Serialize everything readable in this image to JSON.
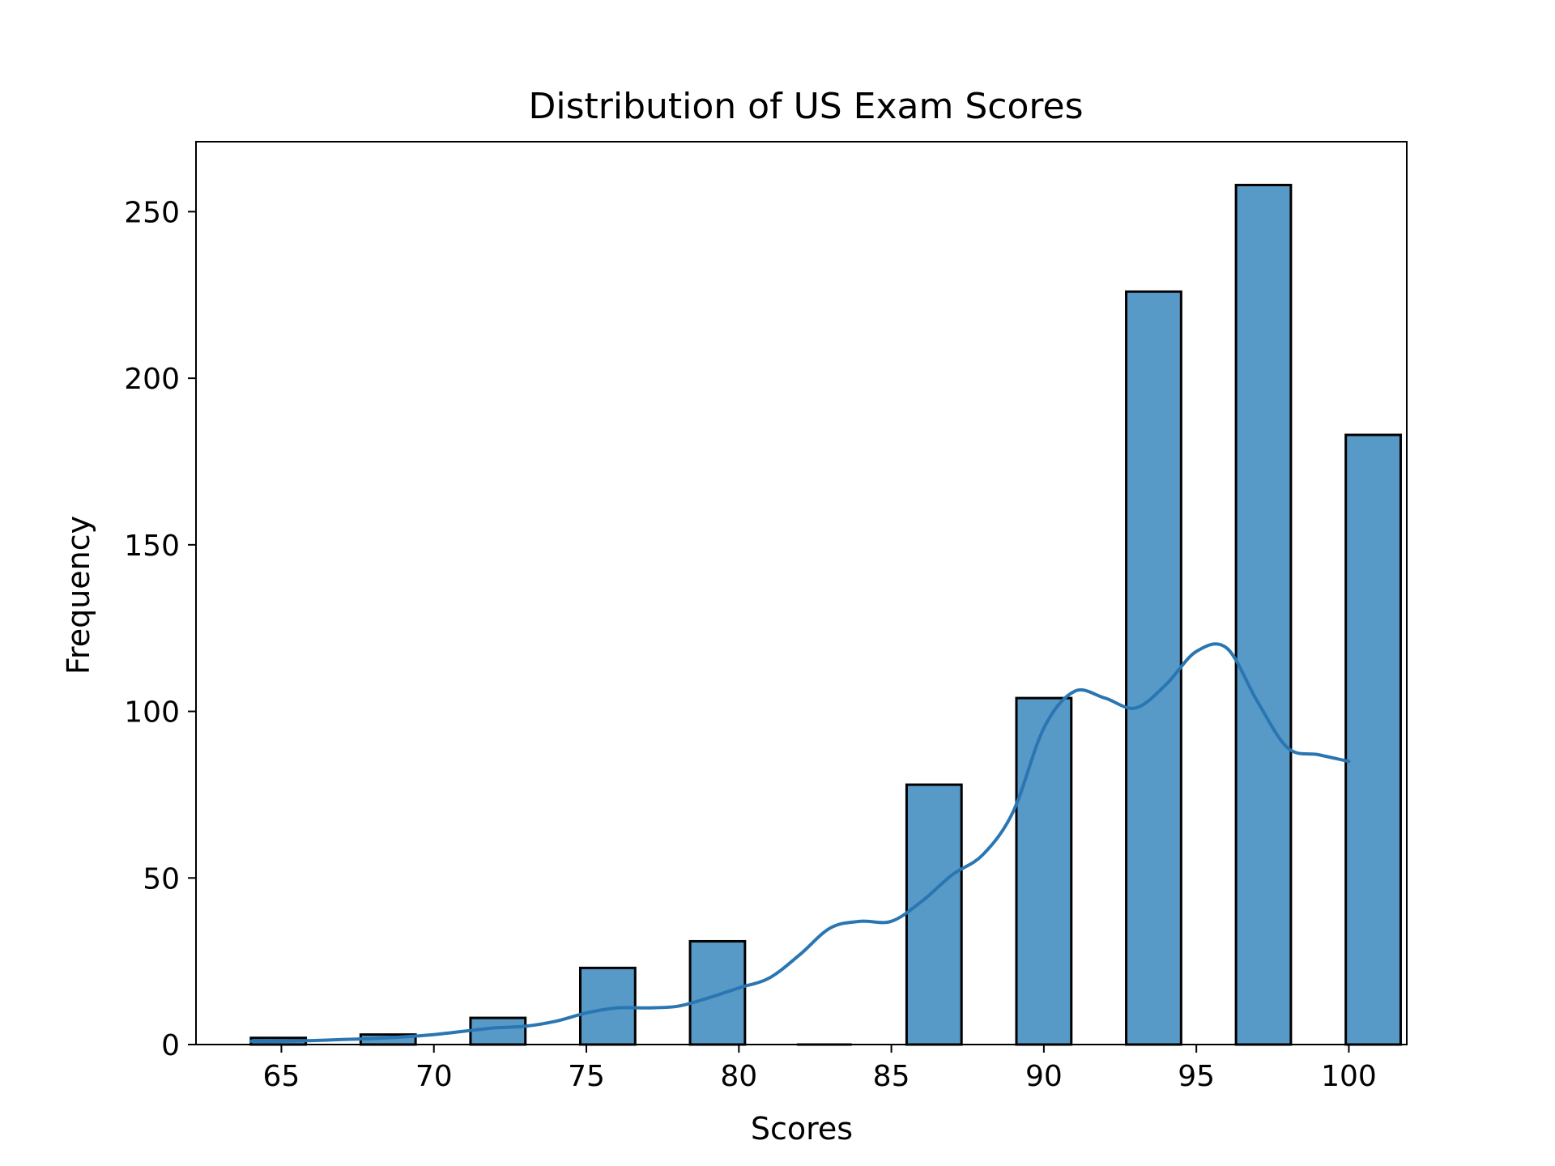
{
  "chart_data": {
    "type": "bar",
    "title": "Distribution of US Exam Scores",
    "xlabel": "Scores",
    "ylabel": "Frequency",
    "xlim": [
      62.2,
      101.9
    ],
    "ylim": [
      0,
      271
    ],
    "xticks": [
      65,
      70,
      75,
      80,
      85,
      90,
      95,
      100
    ],
    "yticks": [
      0,
      50,
      100,
      150,
      200,
      250
    ],
    "bins": [
      {
        "x0": 64.0,
        "x1": 65.8,
        "count": 2
      },
      {
        "x0": 67.6,
        "x1": 69.4,
        "count": 3
      },
      {
        "x0": 71.2,
        "x1": 73.0,
        "count": 8
      },
      {
        "x0": 74.8,
        "x1": 76.6,
        "count": 23
      },
      {
        "x0": 78.4,
        "x1": 80.2,
        "count": 31
      },
      {
        "x0": 81.9,
        "x1": 83.7,
        "count": 0
      },
      {
        "x0": 85.5,
        "x1": 87.3,
        "count": 78
      },
      {
        "x0": 89.1,
        "x1": 90.9,
        "count": 104
      },
      {
        "x0": 92.7,
        "x1": 94.5,
        "count": 226
      },
      {
        "x0": 96.3,
        "x1": 98.1,
        "count": 258
      },
      {
        "x0": 99.9,
        "x1": 101.7,
        "count": 183
      }
    ],
    "kde": {
      "x": [
        64,
        65,
        66,
        67,
        68,
        69,
        70,
        71,
        72,
        73,
        74,
        75,
        76,
        77,
        78,
        79,
        80,
        81,
        82,
        83,
        84,
        85,
        86,
        87,
        88,
        89,
        90,
        91,
        92,
        93,
        94,
        95,
        96,
        97,
        98,
        99,
        100
      ],
      "y": [
        1.0,
        1.0,
        1.2,
        1.5,
        1.8,
        2.3,
        3.0,
        4.0,
        5.0,
        5.5,
        7.0,
        9.5,
        11.0,
        11.0,
        11.5,
        14.0,
        17.0,
        20.0,
        27.0,
        35.0,
        37.0,
        37.0,
        43.0,
        51.0,
        57.0,
        70.0,
        95.0,
        106.0,
        104.0,
        101.0,
        108.0,
        118.0,
        119.0,
        103.0,
        89.0,
        87.0,
        85.0
      ]
    },
    "colors": {
      "bar_fill": "#5799c7",
      "bar_edge": "#000000",
      "kde_line": "#2a76b2",
      "axes": "#000000"
    },
    "grid": false,
    "legend": "none"
  }
}
